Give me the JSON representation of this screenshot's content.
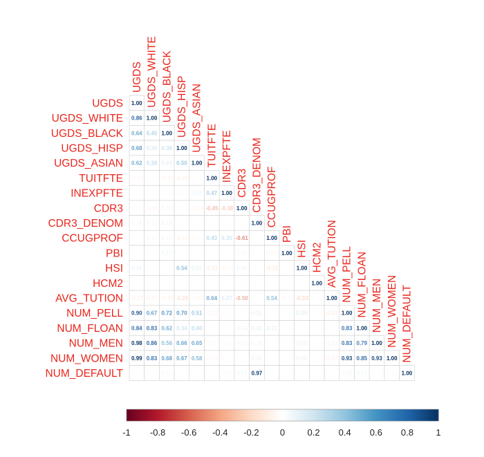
{
  "chart_data": {
    "type": "heatmap",
    "variables": [
      "UGDS",
      "UGDS_WHITE",
      "UGDS_BLACK",
      "UGDS_HISP",
      "UGDS_ASIAN",
      "TUITFTE",
      "INEXPFTE",
      "CDR3",
      "CDR3_DENOM",
      "CCUGPROF",
      "PBI",
      "HSI",
      "HCM2",
      "AVG_TUTION",
      "NUM_PELL",
      "NUM_FLOAN",
      "NUM_MEN",
      "NUM_WOMEN",
      "NUM_DEFAULT"
    ],
    "matrix": [
      [
        1.0
      ],
      [
        0.86,
        1.0
      ],
      [
        0.64,
        0.45,
        1.0
      ],
      [
        0.68,
        0.3,
        0.36,
        1.0
      ],
      [
        0.62,
        0.38,
        0.24,
        0.5,
        1.0
      ],
      [
        -0.11,
        -0.07,
        -0.15,
        -0.2,
        -0.03,
        1.0
      ],
      [
        -0.03,
        -0.05,
        -0.08,
        0.07,
        0.17,
        0.47,
        1.0
      ],
      [
        -0.05,
        -0.14,
        0.15,
        -0.05,
        -0.14,
        -0.45,
        -0.38,
        1.0
      ],
      [
        0.16,
        0.12,
        0.18,
        0.04,
        0.05,
        0.03,
        0.02,
        0.02,
        1.0
      ],
      [
        -0.02,
        0.13,
        0.15,
        -0.16,
        -0.06,
        0.43,
        0.35,
        -0.61,
        0.0,
        1.0
      ],
      [
        0.03,
        0.05,
        0.17,
        0.04,
        0.03,
        0.04,
        0.06,
        0.13,
        0.02,
        -0.14,
        1.0
      ],
      [
        0.2,
        0.05,
        0.03,
        0.54,
        0.22,
        -0.21,
        -0.14,
        0.16,
        0.02,
        -0.23,
        0.03,
        1.0
      ],
      [
        0.02,
        0.03,
        0.04,
        0.01,
        0.02,
        0.02,
        0.01,
        0.06,
        0.02,
        0.03,
        0.01,
        0.01,
        1.0
      ],
      [
        -0.17,
        -0.17,
        -0.17,
        -0.29,
        -0.13,
        0.64,
        0.27,
        -0.5,
        0.03,
        0.54,
        -0.11,
        -0.33,
        0.0,
        1.0
      ],
      [
        0.9,
        0.67,
        0.72,
        0.7,
        0.51,
        -0.17,
        -0.07,
        0.05,
        0.21,
        0.03,
        0.04,
        0.25,
        0.02,
        -0.22,
        1.0
      ],
      [
        0.84,
        0.83,
        0.62,
        0.34,
        0.4,
        0.05,
        0.03,
        -0.16,
        0.22,
        0.22,
        0.02,
        0.04,
        0.03,
        0.02,
        0.83,
        1.0
      ],
      [
        0.98,
        0.86,
        0.56,
        0.66,
        0.65,
        -0.11,
        -0.06,
        -0.13,
        0.15,
        0.04,
        0.03,
        0.19,
        0.02,
        -0.17,
        0.83,
        0.79,
        1.0
      ],
      [
        0.99,
        0.83,
        0.68,
        0.67,
        0.58,
        -0.12,
        0.02,
        0.04,
        0.18,
        0.03,
        0.02,
        0.2,
        0.02,
        -0.17,
        0.93,
        0.85,
        0.93,
        1.0
      ],
      [
        0.06,
        0.04,
        0.14,
        0.03,
        0.02,
        0.03,
        0.08,
        0.15,
        0.97,
        0.01,
        0.02,
        0.02,
        0.03,
        0.02,
        0.15,
        0.17,
        0.04,
        0.11,
        1.0
      ]
    ],
    "color_scale": {
      "min": -1,
      "max": 1,
      "ticks": [
        "-1",
        "-0.8",
        "-0.6",
        "-0.4",
        "-0.2",
        "0",
        "0.2",
        "0.4",
        "0.6",
        "0.8",
        "1"
      ],
      "colors": [
        "#67001f",
        "#b2182b",
        "#d6604d",
        "#f4a582",
        "#fddbc7",
        "#ffffff",
        "#d1e5f0",
        "#92c5de",
        "#4393c3",
        "#2166ac",
        "#053061"
      ]
    },
    "label_color": "#e8261c",
    "layout": "lower-triangle",
    "legend_placement": "bottom"
  }
}
